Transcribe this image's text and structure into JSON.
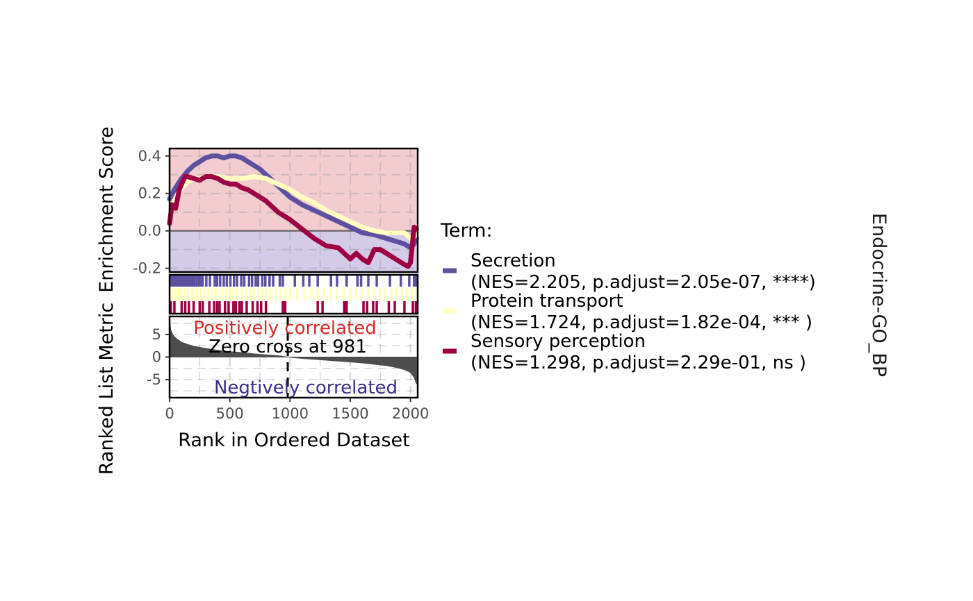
{
  "chart_data": {
    "type": "line",
    "strip_label": "Endocrine-GO_BP",
    "legend": {
      "title": "Term:",
      "position": "right"
    },
    "es_panel": {
      "ylabel": "Enrichment Score",
      "xlim": [
        0,
        2060
      ],
      "ylim": [
        -0.22,
        0.44
      ],
      "yticks": [
        -0.2,
        0.0,
        0.2,
        0.4
      ],
      "ytick_labels": [
        "-0.2",
        "0.0",
        "0.2",
        "0.4"
      ],
      "grid": true,
      "positive_fill": "#f2cccf",
      "negative_fill": "#d3cbe8"
    },
    "series": [
      {
        "name": "Secretion",
        "label_line2": "(NES=2.205, p.adjust=2.05e-07, ****)",
        "color": "#5c509f",
        "x": [
          0,
          40,
          100,
          150,
          200,
          250,
          300,
          350,
          400,
          450,
          500,
          550,
          600,
          650,
          700,
          750,
          800,
          850,
          900,
          950,
          1000,
          1100,
          1200,
          1300,
          1400,
          1500,
          1600,
          1700,
          1800,
          1900,
          1950,
          2000,
          2030,
          2050
        ],
        "y": [
          0.17,
          0.22,
          0.28,
          0.32,
          0.35,
          0.37,
          0.39,
          0.4,
          0.4,
          0.39,
          0.4,
          0.4,
          0.39,
          0.37,
          0.35,
          0.33,
          0.3,
          0.27,
          0.24,
          0.21,
          0.18,
          0.14,
          0.11,
          0.08,
          0.05,
          0.02,
          -0.01,
          -0.02,
          -0.04,
          -0.06,
          -0.07,
          -0.09,
          -0.07,
          -0.04
        ],
        "hits": [
          5,
          15,
          25,
          35,
          45,
          60,
          70,
          85,
          100,
          115,
          130,
          145,
          160,
          175,
          190,
          205,
          225,
          245,
          255,
          275,
          305,
          335,
          375,
          395,
          420,
          450,
          475,
          505,
          535,
          560,
          595,
          620,
          660,
          685,
          715,
          735,
          770,
          795,
          830,
          860,
          915,
          940,
          1040,
          1110,
          1160,
          1230,
          1340,
          1390,
          1470,
          1560,
          1590,
          1650,
          1720,
          1830,
          1920,
          1990,
          2030,
          2050
        ]
      },
      {
        "name": "Protein transport",
        "label_line2": "(NES=1.724, p.adjust=1.82e-04, *** )",
        "color": "#ffffbf",
        "x": [
          0,
          40,
          100,
          150,
          200,
          250,
          300,
          400,
          500,
          600,
          700,
          800,
          900,
          1000,
          1100,
          1200,
          1300,
          1400,
          1500,
          1600,
          1700,
          1800,
          1900,
          1950,
          2000,
          2030,
          2050
        ],
        "y": [
          0.07,
          0.16,
          0.23,
          0.26,
          0.28,
          0.28,
          0.29,
          0.29,
          0.28,
          0.28,
          0.29,
          0.28,
          0.25,
          0.22,
          0.18,
          0.15,
          0.11,
          0.08,
          0.05,
          0.02,
          0.0,
          -0.01,
          -0.01,
          -0.01,
          -0.04,
          -0.03,
          -0.02
        ],
        "hits": [
          10,
          30,
          55,
          75,
          95,
          120,
          150,
          180,
          200,
          230,
          260,
          290,
          320,
          350,
          380,
          410,
          440,
          470,
          500,
          530,
          560,
          600,
          630,
          670,
          700,
          740,
          770,
          800,
          840,
          880,
          920,
          960,
          1000,
          1060,
          1120,
          1180,
          1230,
          1280,
          1340,
          1390,
          1450,
          1500,
          1550,
          1600,
          1650,
          1700,
          1750,
          1790,
          1840,
          1880,
          1930,
          1970,
          2010,
          2045
        ]
      },
      {
        "name": "Sensory perception",
        "label_line2": "(NES=1.298, p.adjust=2.29e-01, ns  )",
        "color": "#9e0142",
        "x": [
          0,
          20,
          50,
          80,
          100,
          130,
          150,
          200,
          250,
          300,
          350,
          400,
          450,
          500,
          550,
          600,
          650,
          700,
          750,
          800,
          850,
          900,
          1000,
          1100,
          1200,
          1300,
          1400,
          1500,
          1550,
          1600,
          1650,
          1700,
          1750,
          1800,
          1850,
          1900,
          1950,
          1980,
          2000,
          2030,
          2050
        ],
        "y": [
          0.04,
          0.14,
          0.12,
          0.22,
          0.25,
          0.29,
          0.29,
          0.28,
          0.27,
          0.29,
          0.29,
          0.28,
          0.26,
          0.25,
          0.25,
          0.23,
          0.22,
          0.2,
          0.18,
          0.16,
          0.13,
          0.1,
          0.06,
          0.01,
          -0.04,
          -0.08,
          -0.09,
          -0.15,
          -0.12,
          -0.15,
          -0.17,
          -0.1,
          -0.1,
          -0.12,
          -0.14,
          -0.16,
          -0.18,
          -0.19,
          -0.17,
          0.02,
          0.01
        ],
        "hits": [
          10,
          40,
          100,
          130,
          160,
          200,
          250,
          275,
          330,
          370,
          395,
          415,
          460,
          490,
          530,
          550,
          580,
          600,
          640,
          690,
          730,
          760,
          800,
          940,
          960,
          1230,
          1270,
          1450,
          1470,
          1610,
          1640,
          1690,
          1720,
          1820,
          1870,
          1950,
          2020,
          2045
        ]
      }
    ],
    "rank_panel": {
      "ylabel": "Ranked List Metric",
      "xlabel": "Rank in Ordered Dataset",
      "xlim": [
        0,
        2060
      ],
      "ylim": [
        -9,
        9
      ],
      "xticks": [
        0,
        500,
        1000,
        1500,
        2000
      ],
      "xtick_labels": [
        "0",
        "500",
        "1000",
        "1500",
        "2000"
      ],
      "yticks": [
        -5,
        0,
        5
      ],
      "ytick_labels": [
        "-5",
        "0",
        "5"
      ],
      "zero_cross": 981,
      "zero_cross_label": "Zero cross at 981",
      "pos_label": "Positively correlated",
      "pos_color": "#d12a2a",
      "neg_label": "Negtively correlated",
      "neg_color": "#3b2f8a",
      "curve_x": [
        0,
        10,
        30,
        60,
        100,
        150,
        200,
        300,
        400,
        500,
        600,
        700,
        800,
        900,
        981,
        1100,
        1200,
        1300,
        1400,
        1500,
        1600,
        1700,
        1800,
        1900,
        1950,
        2000,
        2030,
        2050
      ],
      "curve_y": [
        8.6,
        6.0,
        4.8,
        4.0,
        3.3,
        2.8,
        2.4,
        1.9,
        1.5,
        1.2,
        1.0,
        0.7,
        0.5,
        0.3,
        0.0,
        -0.3,
        -0.5,
        -0.7,
        -0.9,
        -1.1,
        -1.3,
        -1.6,
        -1.9,
        -2.4,
        -2.8,
        -3.4,
        -4.5,
        -6.0
      ]
    }
  }
}
